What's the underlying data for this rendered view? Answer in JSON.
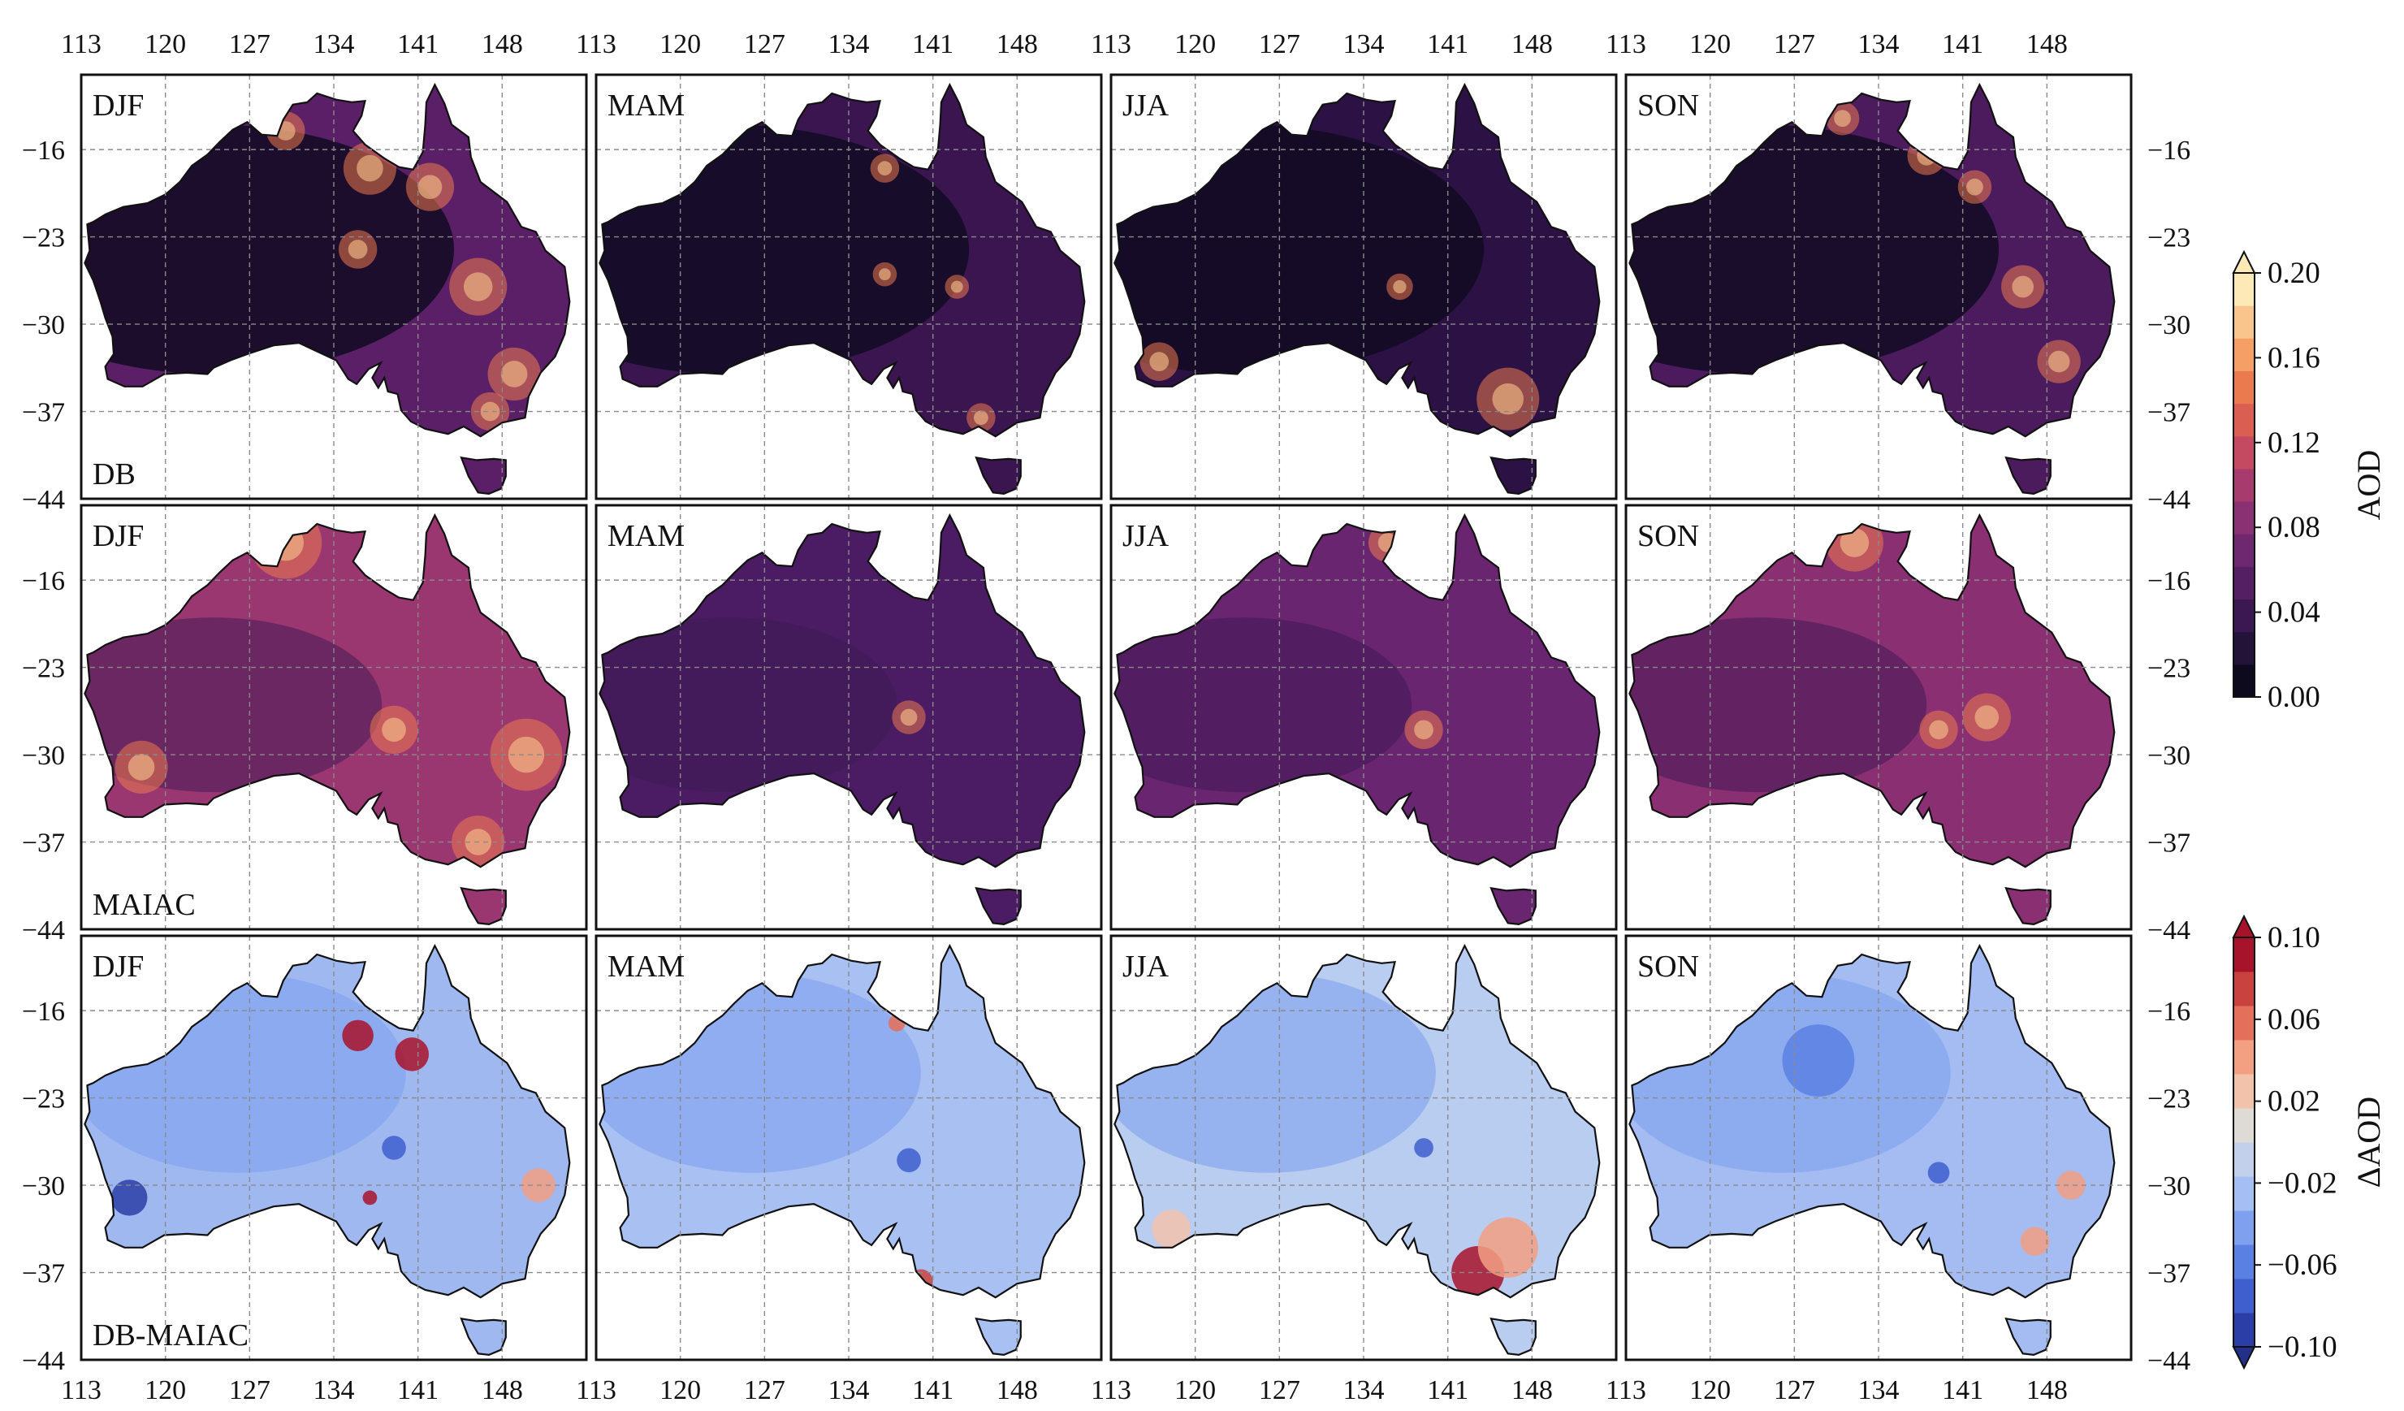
{
  "figure": {
    "columns": [
      "DJF",
      "MAM",
      "JJA",
      "SON"
    ],
    "rows": [
      {
        "label": "DB",
        "colormap": "aod"
      },
      {
        "label": "MAIAC",
        "colormap": "aod"
      },
      {
        "label": "DB-MAIAC",
        "colormap": "diff"
      }
    ],
    "lon_ticks": [
      "113",
      "120",
      "127",
      "134",
      "141",
      "148"
    ],
    "lat_ticks": [
      "−16",
      "−23",
      "−30",
      "−37",
      "−44"
    ],
    "lon_range": [
      113,
      155
    ],
    "lat_range": [
      -10,
      -44
    ]
  },
  "colorbars": [
    {
      "title": "AOD",
      "ticks": [
        "0.20",
        "0.16",
        "0.12",
        "0.08",
        "0.04",
        "0.00"
      ],
      "colors": [
        "#0d0a1e",
        "#241338",
        "#3b1852",
        "#541f63",
        "#6e2870",
        "#8a3174",
        "#a83b6d",
        "#c44a62",
        "#db5e53",
        "#ec7a4f",
        "#f59f66",
        "#f9c58c",
        "#fde9b8"
      ],
      "extend": "max"
    },
    {
      "title": "ΔAOD",
      "ticks": [
        "0.10",
        "0.06",
        "0.02",
        "−0.02",
        "−0.06",
        "−0.10"
      ],
      "colors": [
        "#2b3ea8",
        "#3f5fcf",
        "#5b80e3",
        "#7ea0ee",
        "#a5bff4",
        "#c3d0ec",
        "#dedad6",
        "#f2c2ab",
        "#f29f82",
        "#e4705b",
        "#c9423f",
        "#a8132c"
      ],
      "extend": "both"
    }
  ],
  "panel_fill": {
    "DB": {
      "DJF": "#5a1f66",
      "MAM": "#3a1550",
      "JJA": "#2c1244",
      "SON": "#4c1b5e"
    },
    "MAIAC": {
      "DJF": "#9a3670",
      "MAM": "#4b1c63",
      "JJA": "#6a2570",
      "SON": "#8a2f72"
    },
    "DB-MAIAC": {
      "DJF": "#9fb8f0",
      "MAM": "#a9c0f2",
      "JJA": "#b9cdf1",
      "SON": "#a4bcf1"
    }
  }
}
